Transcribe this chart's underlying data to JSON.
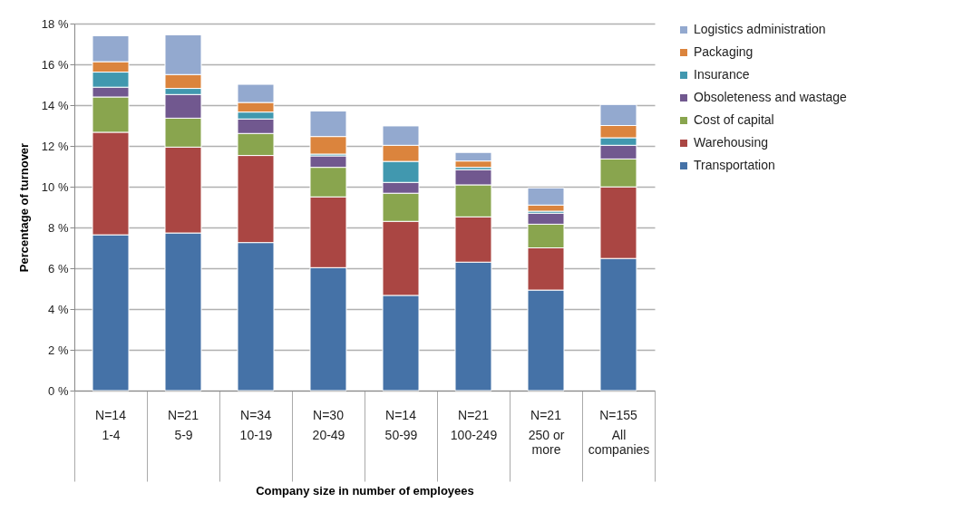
{
  "chart_data": {
    "type": "bar",
    "stacked": true,
    "xlabel": "Company size in number of employees",
    "ylabel": "Percentage of turnover",
    "categories": [
      "1-4",
      "5-9",
      "10-19",
      "20-49",
      "50-99",
      "100-249",
      "250 or more",
      "All companies"
    ],
    "series": [
      {
        "name": "Transportation",
        "color": "#4572a7",
        "values": [
          7.64,
          7.73,
          7.26,
          6.03,
          4.67,
          6.3,
          4.93,
          6.48
        ]
      },
      {
        "name": "Warehousing",
        "color": "#aa4643",
        "values": [
          5.03,
          4.21,
          4.27,
          3.47,
          3.63,
          2.22,
          2.07,
          3.51
        ]
      },
      {
        "name": "Cost of capital",
        "color": "#89a54e",
        "values": [
          1.73,
          1.42,
          1.08,
          1.45,
          1.38,
          1.57,
          1.16,
          1.37
        ]
      },
      {
        "name": "Obsoleteness and wastage",
        "color": "#71588f",
        "values": [
          0.48,
          1.16,
          0.71,
          0.56,
          0.53,
          0.74,
          0.54,
          0.67
        ]
      },
      {
        "name": "Insurance",
        "color": "#4198af",
        "values": [
          0.74,
          0.3,
          0.34,
          0.09,
          1.03,
          0.12,
          0.1,
          0.37
        ]
      },
      {
        "name": "Packaging",
        "color": "#db843d",
        "values": [
          0.51,
          0.68,
          0.47,
          0.86,
          0.79,
          0.31,
          0.3,
          0.6
        ]
      },
      {
        "name": "Logistics administration",
        "color": "#93a9cf",
        "values": [
          1.27,
          1.95,
          0.89,
          1.25,
          0.95,
          0.42,
          0.84,
          1.03
        ]
      }
    ],
    "ylim": [
      0,
      18
    ],
    "yticks": [
      {
        "value": 0,
        "label": "0 %"
      },
      {
        "value": 2,
        "label": "2 %"
      },
      {
        "value": 4,
        "label": "4 %"
      },
      {
        "value": 6,
        "label": "6 %"
      },
      {
        "value": 8,
        "label": "8 %"
      },
      {
        "value": 10,
        "label": "10 %"
      },
      {
        "value": 12,
        "label": "12 %"
      },
      {
        "value": 14,
        "label": "14 %"
      },
      {
        "value": 16,
        "label": "16 %"
      },
      {
        "value": 18,
        "label": "18 %"
      }
    ],
    "grid": "y",
    "legend": "right",
    "annotations": [
      "N=14",
      "N=21",
      "N=34",
      "N=30",
      "N=14",
      "N=21",
      "N=21",
      "N=155"
    ]
  }
}
